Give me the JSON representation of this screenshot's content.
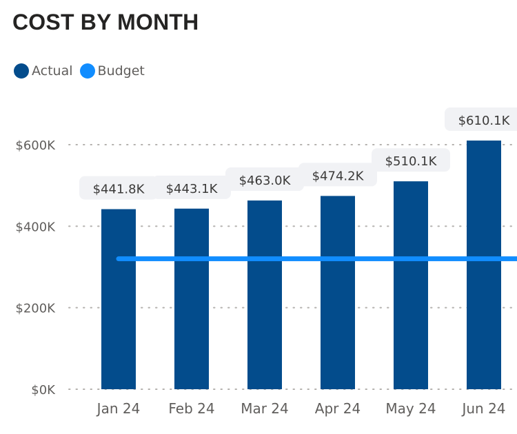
{
  "title": "COST BY MONTH",
  "legend": [
    {
      "label": "Actual",
      "color": "#034c8c"
    },
    {
      "label": "Budget",
      "color": "#118dff"
    }
  ],
  "chart_data": {
    "type": "bar",
    "title": "COST BY MONTH",
    "categories": [
      "Jan 24",
      "Feb 24",
      "Mar 24",
      "Apr 24",
      "May 24",
      "Jun 24"
    ],
    "series": [
      {
        "name": "Actual",
        "type": "bar",
        "color": "#034c8c",
        "values": [
          441.8,
          443.1,
          463.0,
          474.2,
          510.1,
          610.1
        ],
        "labels": [
          "$441.8K",
          "$443.1K",
          "$463.0K",
          "$474.2K",
          "$510.1K",
          "$610.1K"
        ]
      },
      {
        "name": "Budget",
        "type": "line",
        "color": "#118dff",
        "values": [
          320,
          320,
          320,
          320,
          320,
          320
        ]
      }
    ],
    "y_ticks": [
      {
        "value": 0,
        "label": "$0K"
      },
      {
        "value": 200,
        "label": "$200K"
      },
      {
        "value": 400,
        "label": "$400K"
      },
      {
        "value": 600,
        "label": "$600K"
      }
    ],
    "ylim": [
      0,
      600
    ],
    "xlabel": "",
    "ylabel": "",
    "grid": true,
    "legend_position": "top-left"
  }
}
